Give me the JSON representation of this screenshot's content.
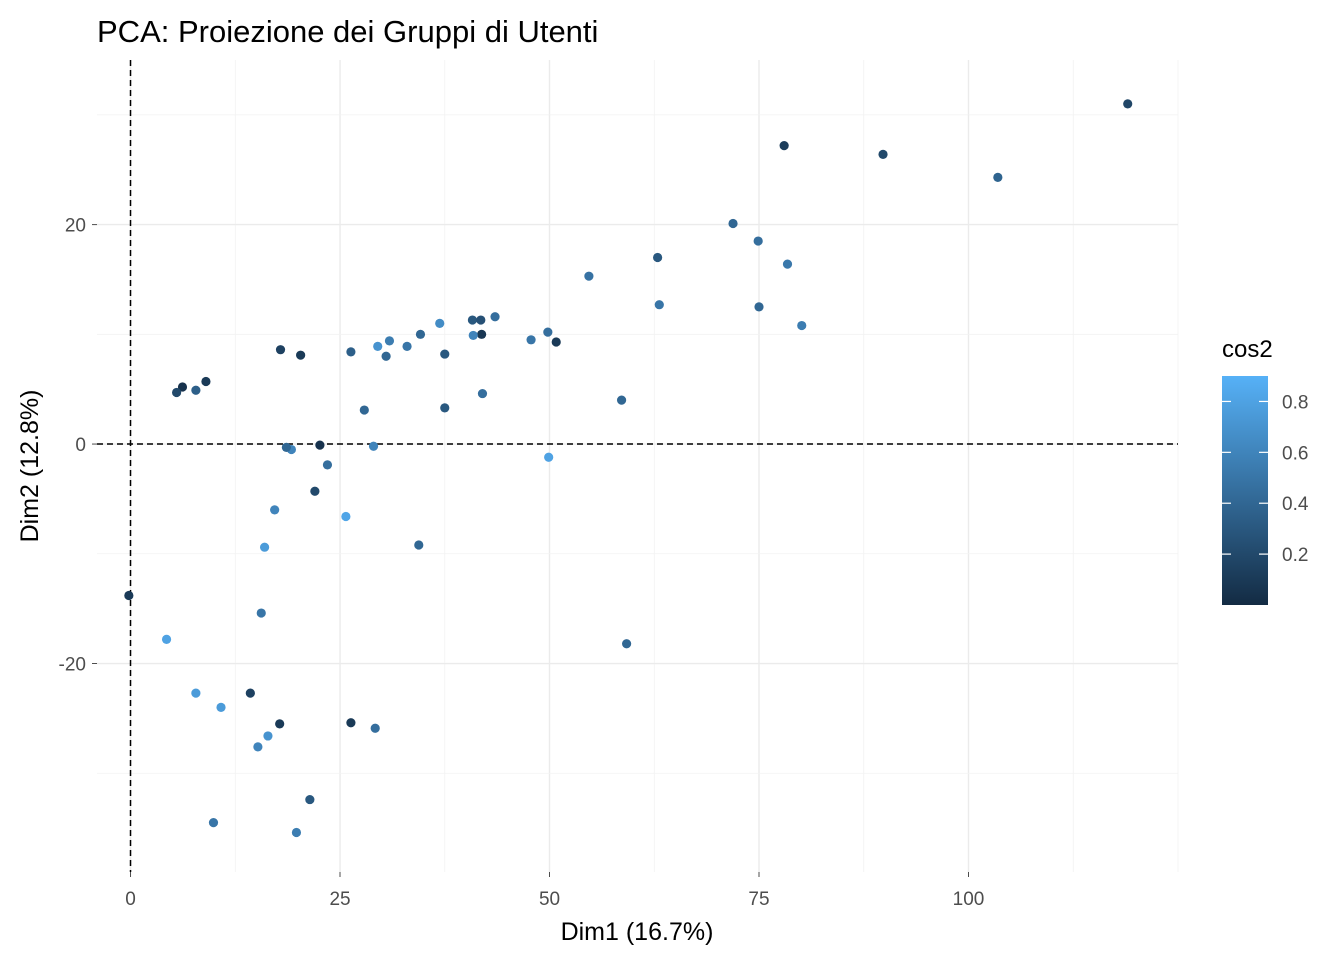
{
  "chart_data": {
    "type": "scatter",
    "title": "PCA: Proiezione dei Gruppi di Utenti",
    "xlabel": "Dim1 (16.7%)",
    "ylabel": "Dim2 (12.8%)",
    "xlim": [
      -4,
      125
    ],
    "ylim": [
      -39,
      35
    ],
    "x_ticks": [
      0,
      25,
      50,
      75,
      100
    ],
    "x_tick_labels": [
      "0",
      "25",
      "50",
      "75",
      "100"
    ],
    "y_ticks": [
      -20,
      0,
      20
    ],
    "y_tick_labels": [
      "-20",
      "0",
      "20"
    ],
    "grid": true,
    "reference_lines": {
      "x": 0,
      "y": 0,
      "style": "dashed"
    },
    "color_variable": "cos2",
    "legend": {
      "title": "cos2",
      "position": "right",
      "ticks": [
        0.2,
        0.4,
        0.6,
        0.8
      ],
      "tick_labels": [
        "0.2",
        "0.4",
        "0.6",
        "0.8"
      ],
      "range": [
        0.0,
        0.9
      ],
      "low_color": "#132B43",
      "high_color": "#56B1F7"
    },
    "points": [
      {
        "x": 119.0,
        "y": 31.0,
        "cos2": 0.18
      },
      {
        "x": 78.0,
        "y": 27.2,
        "cos2": 0.12
      },
      {
        "x": 89.8,
        "y": 26.4,
        "cos2": 0.2
      },
      {
        "x": 103.5,
        "y": 24.3,
        "cos2": 0.38
      },
      {
        "x": 71.9,
        "y": 20.1,
        "cos2": 0.4
      },
      {
        "x": 74.9,
        "y": 18.5,
        "cos2": 0.45
      },
      {
        "x": 62.9,
        "y": 17.0,
        "cos2": 0.3
      },
      {
        "x": 78.4,
        "y": 16.4,
        "cos2": 0.52
      },
      {
        "x": 54.7,
        "y": 15.3,
        "cos2": 0.48
      },
      {
        "x": 63.1,
        "y": 12.7,
        "cos2": 0.5
      },
      {
        "x": 75.0,
        "y": 12.5,
        "cos2": 0.4
      },
      {
        "x": 80.1,
        "y": 10.8,
        "cos2": 0.55
      },
      {
        "x": 43.5,
        "y": 11.6,
        "cos2": 0.45
      },
      {
        "x": 40.8,
        "y": 11.3,
        "cos2": 0.3
      },
      {
        "x": 41.8,
        "y": 11.3,
        "cos2": 0.25
      },
      {
        "x": 36.9,
        "y": 11.0,
        "cos2": 0.65
      },
      {
        "x": 49.8,
        "y": 10.2,
        "cos2": 0.45
      },
      {
        "x": 41.9,
        "y": 10.0,
        "cos2": 0.08
      },
      {
        "x": 40.9,
        "y": 9.9,
        "cos2": 0.6
      },
      {
        "x": 34.6,
        "y": 10.0,
        "cos2": 0.4
      },
      {
        "x": 47.8,
        "y": 9.5,
        "cos2": 0.5
      },
      {
        "x": 50.8,
        "y": 9.3,
        "cos2": 0.1
      },
      {
        "x": 30.9,
        "y": 9.4,
        "cos2": 0.55
      },
      {
        "x": 29.5,
        "y": 8.9,
        "cos2": 0.7
      },
      {
        "x": 33.0,
        "y": 8.9,
        "cos2": 0.5
      },
      {
        "x": 26.3,
        "y": 8.4,
        "cos2": 0.35
      },
      {
        "x": 37.5,
        "y": 8.2,
        "cos2": 0.3
      },
      {
        "x": 17.9,
        "y": 8.6,
        "cos2": 0.15
      },
      {
        "x": 20.3,
        "y": 8.1,
        "cos2": 0.1
      },
      {
        "x": 30.5,
        "y": 8.0,
        "cos2": 0.4
      },
      {
        "x": 58.6,
        "y": 4.0,
        "cos2": 0.4
      },
      {
        "x": 42.0,
        "y": 4.6,
        "cos2": 0.45
      },
      {
        "x": 37.5,
        "y": 3.3,
        "cos2": 0.3
      },
      {
        "x": 27.9,
        "y": 3.1,
        "cos2": 0.4
      },
      {
        "x": 29.0,
        "y": -0.2,
        "cos2": 0.6
      },
      {
        "x": 22.6,
        "y": -0.1,
        "cos2": 0.05
      },
      {
        "x": 49.9,
        "y": -1.2,
        "cos2": 0.8
      },
      {
        "x": 25.7,
        "y": -6.6,
        "cos2": 0.82
      },
      {
        "x": 34.4,
        "y": -9.2,
        "cos2": 0.4
      },
      {
        "x": 16.0,
        "y": -9.4,
        "cos2": 0.75
      },
      {
        "x": 59.2,
        "y": -18.2,
        "cos2": 0.4
      },
      {
        "x": 15.6,
        "y": -15.4,
        "cos2": 0.5
      },
      {
        "x": 14.3,
        "y": -22.7,
        "cos2": 0.15
      },
      {
        "x": 17.8,
        "y": -25.5,
        "cos2": 0.1
      },
      {
        "x": 26.3,
        "y": -25.4,
        "cos2": 0.1
      },
      {
        "x": 29.2,
        "y": -25.9,
        "cos2": 0.45
      },
      {
        "x": 16.4,
        "y": -26.6,
        "cos2": 0.7
      },
      {
        "x": 15.2,
        "y": -27.6,
        "cos2": 0.6
      },
      {
        "x": 21.4,
        "y": -32.4,
        "cos2": 0.3
      },
      {
        "x": 9.9,
        "y": -34.5,
        "cos2": 0.5
      },
      {
        "x": 19.8,
        "y": -35.4,
        "cos2": 0.55
      },
      {
        "x": -0.2,
        "y": -13.8,
        "cos2": 0.1
      },
      {
        "x": 10.8,
        "y": -24.0,
        "cos2": 0.75
      },
      {
        "x": 7.8,
        "y": -22.7,
        "cos2": 0.75
      },
      {
        "x": 4.3,
        "y": -17.8,
        "cos2": 0.8
      },
      {
        "x": 22.0,
        "y": -4.3,
        "cos2": 0.2
      },
      {
        "x": 17.2,
        "y": -6.0,
        "cos2": 0.6
      },
      {
        "x": 23.5,
        "y": -1.9,
        "cos2": 0.45
      },
      {
        "x": 19.2,
        "y": -0.5,
        "cos2": 0.6
      },
      {
        "x": 18.6,
        "y": -0.3,
        "cos2": 0.4
      },
      {
        "x": 9.0,
        "y": 5.7,
        "cos2": 0.1
      },
      {
        "x": 7.8,
        "y": 4.9,
        "cos2": 0.35
      },
      {
        "x": 6.2,
        "y": 5.2,
        "cos2": 0.05
      },
      {
        "x": 5.5,
        "y": 4.7,
        "cos2": 0.2
      }
    ]
  }
}
